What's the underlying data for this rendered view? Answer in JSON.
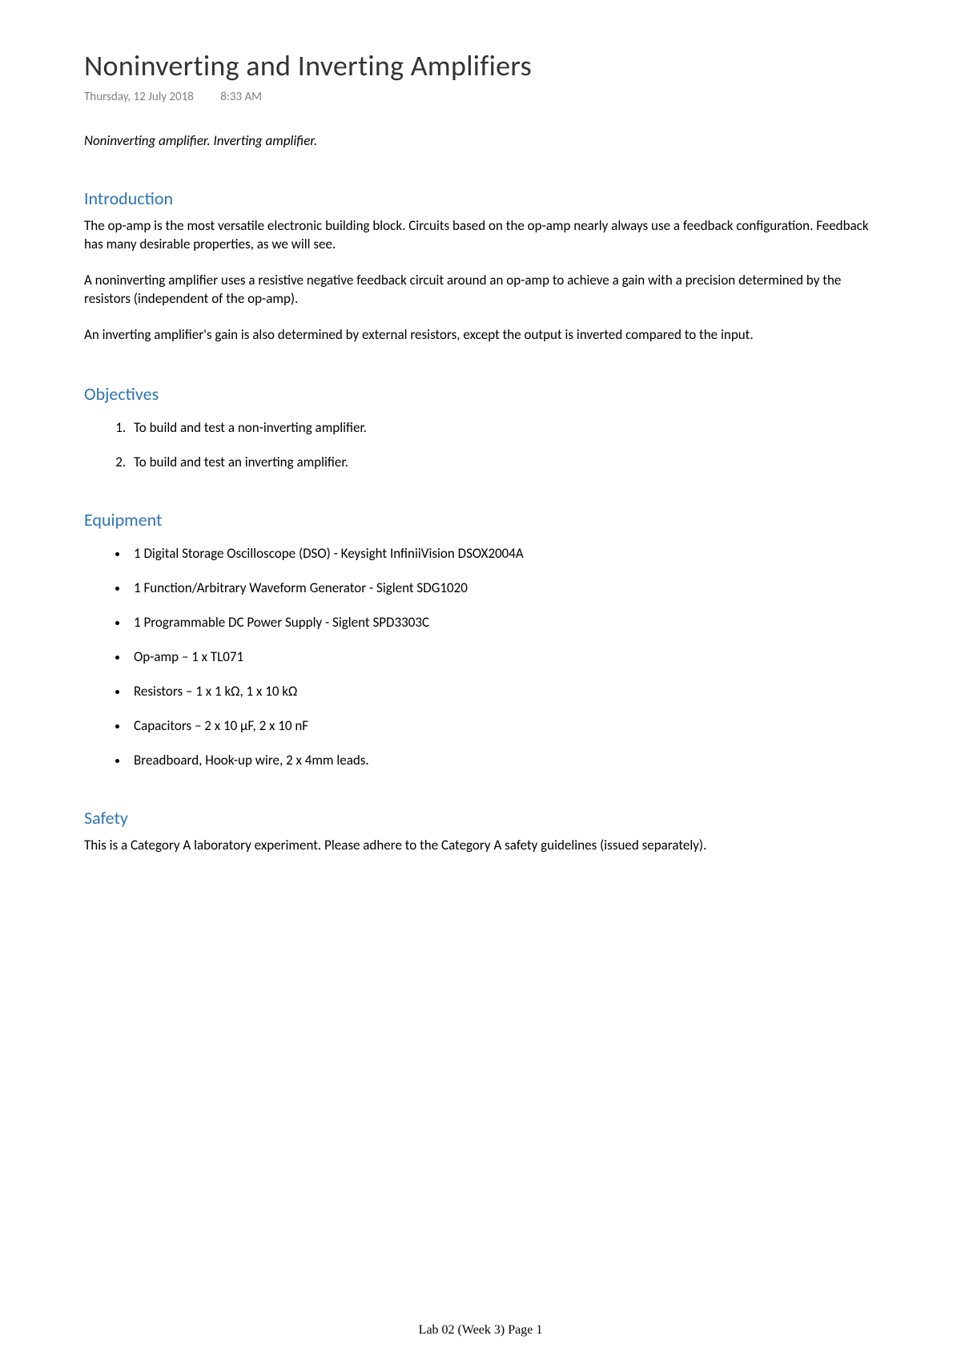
{
  "title": "Noninverting and Inverting Amplifiers",
  "meta": {
    "date": "Thursday, 12 July 2018",
    "time": "8:33 AM"
  },
  "subtitle": "Noninverting amplifier. Inverting amplifier.",
  "sections": {
    "introduction": {
      "heading": "Introduction",
      "p1": "The op-amp is the most versatile electronic building block. Circuits based on the op-amp nearly always use a feedback configuration. Feedback has many desirable properties, as we will see.",
      "p2": "A noninverting amplifier uses a resistive negative feedback circuit around an op-amp to achieve a gain with a precision determined by the resistors (independent of the op-amp).",
      "p3": "An inverting amplifier's gain is also determined by external resistors, except the output is inverted compared to the input."
    },
    "objectives": {
      "heading": "Objectives",
      "items": [
        "To build and test a non-inverting amplifier.",
        "To build and test an inverting amplifier."
      ]
    },
    "equipment": {
      "heading": "Equipment",
      "items": [
        "1 Digital Storage Oscilloscope (DSO) - Keysight InfiniiVision DSOX2004A",
        "1 Function/Arbitrary Waveform Generator - Siglent SDG1020",
        "1 Programmable DC Power Supply - Siglent SPD3303C",
        "Op-amp – 1 x TL071",
        "Resistors – 1 x 1 kΩ, 1 x 10 kΩ",
        "Capacitors – 2 x 10 µF, 2 x 10 nF",
        "Breadboard, Hook-up wire, 2 x 4mm leads."
      ]
    },
    "safety": {
      "heading": "Safety",
      "p1": "This is a Category A laboratory experiment. Please adhere to the Category A safety guidelines (issued separately)."
    }
  },
  "footer": "Lab 02 (Week 3) Page 1",
  "colors": {
    "heading_color": "#2e74b5",
    "text_color": "#000000",
    "meta_color": "#808080",
    "background": "#ffffff"
  }
}
